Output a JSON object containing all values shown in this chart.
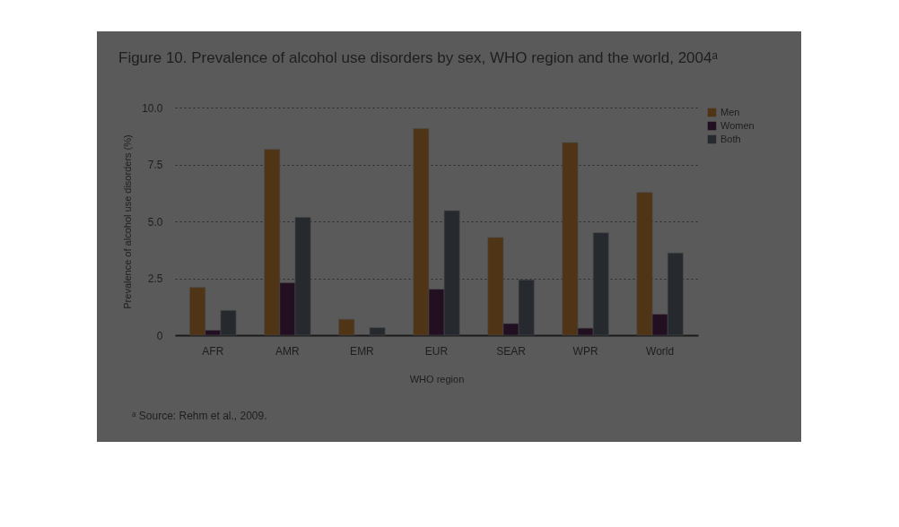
{
  "chart_data": {
    "type": "bar",
    "title": "Figure 10. Prevalence of alcohol use disorders by sex, WHO region and the world, 2004ᵃ",
    "xlabel": "WHO region",
    "ylabel": "Prevalence of alcohol use disorders (%)",
    "categories": [
      "AFR",
      "AMR",
      "EMR",
      "EUR",
      "SEAR",
      "WPR",
      "World"
    ],
    "series": [
      {
        "name": "Men",
        "color": "#4f3415",
        "values": [
          2.1,
          8.16,
          0.7,
          9.07,
          4.29,
          8.46,
          6.27
        ]
      },
      {
        "name": "Women",
        "color": "#220f22",
        "values": [
          0.22,
          2.3,
          null,
          2.02,
          0.51,
          0.31,
          0.92
        ]
      },
      {
        "name": "Both",
        "color": "#262a2f",
        "values": [
          1.09,
          5.18,
          0.33,
          5.47,
          2.43,
          4.5,
          3.61
        ]
      }
    ],
    "ylim": [
      0,
      10
    ],
    "yticks": [
      0,
      {
        "value": 2.5,
        "label": "2.5"
      },
      {
        "value": 5,
        "label": "5.0"
      },
      {
        "value": 7.5,
        "label": "7.5"
      },
      {
        "value": 10,
        "label": "10.0"
      }
    ],
    "grid": "y",
    "legend": "top right",
    "annotations": [
      "ᵃ   Source: Rehm et al., 2009."
    ]
  }
}
